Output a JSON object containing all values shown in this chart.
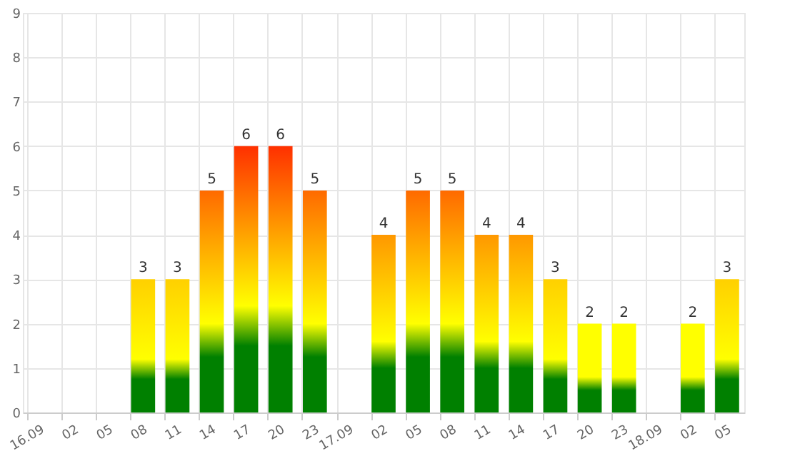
{
  "chart_data": {
    "type": "bar",
    "categories": [
      "16.09",
      "02",
      "05",
      "08",
      "11",
      "14",
      "17",
      "20",
      "23",
      "17.09",
      "02",
      "05",
      "08",
      "11",
      "14",
      "17",
      "20",
      "23",
      "18.09",
      "02",
      "05"
    ],
    "values": [
      0,
      0,
      0,
      3,
      3,
      5,
      6,
      6,
      5,
      0,
      4,
      5,
      5,
      4,
      4,
      3,
      2,
      2,
      0,
      2,
      3
    ],
    "value_labels": [
      null,
      null,
      null,
      "3",
      "3",
      "5",
      "6",
      "6",
      "5",
      null,
      "4",
      "5",
      "5",
      "4",
      "4",
      "3",
      "2",
      "2",
      null,
      "2",
      "3"
    ],
    "colors": [
      "#ffd000",
      "#ffd000",
      "#ffd000",
      "#ffd000",
      "#ffd000",
      "#ff6a00",
      "#ff3000",
      "#ff3000",
      "#ff6a00",
      "#ffd000",
      "#ff9800",
      "#ff6a00",
      "#ff6a00",
      "#ff9800",
      "#ff9800",
      "#ffd000",
      "#ffff00",
      "#ffff00",
      "#ffd000",
      "#ffff00",
      "#ffd000"
    ],
    "ylim": [
      0,
      9
    ],
    "yticks": [
      0,
      1,
      2,
      3,
      4,
      5,
      6,
      7,
      8,
      9
    ],
    "grid": true
  }
}
